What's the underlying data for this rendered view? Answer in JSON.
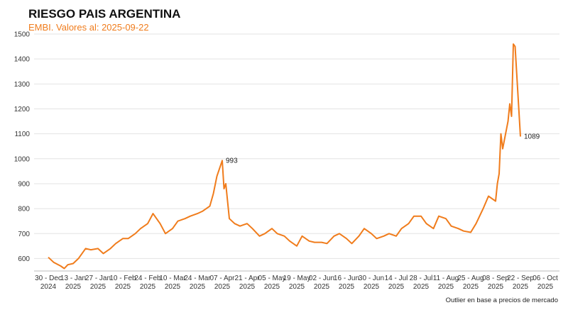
{
  "chart_data": {
    "type": "line",
    "title": "RIESGO PAIS ARGENTINA",
    "subtitle": "EMBI. Valores al: 2025-09-22",
    "footnote": "Outlier en base a precios de mercado",
    "ylim": [
      550,
      1500
    ],
    "yticks": [
      600,
      700,
      800,
      900,
      1000,
      1100,
      1200,
      1300,
      1400,
      1500
    ],
    "grid": true,
    "line_color": "#f07c1c",
    "xticks": [
      {
        "top": "30 - Dec",
        "bottom": "2024"
      },
      {
        "top": "13 - Jan",
        "bottom": "2025"
      },
      {
        "top": "27 - Jan",
        "bottom": "2025"
      },
      {
        "top": "10 - Feb",
        "bottom": "2025"
      },
      {
        "top": "24 - Feb",
        "bottom": "2025"
      },
      {
        "top": "10 - Mar",
        "bottom": "2025"
      },
      {
        "top": "24 - Mar",
        "bottom": "2025"
      },
      {
        "top": "07 - Apr",
        "bottom": "2025"
      },
      {
        "top": "21 - Apr",
        "bottom": "2025"
      },
      {
        "top": "05 - May",
        "bottom": "2025"
      },
      {
        "top": "19 - May",
        "bottom": "2025"
      },
      {
        "top": "02 - Jun",
        "bottom": "2025"
      },
      {
        "top": "16 - Jun",
        "bottom": "2025"
      },
      {
        "top": "30 - Jun",
        "bottom": "2025"
      },
      {
        "top": "14 - Jul",
        "bottom": "2025"
      },
      {
        "top": "28 - Jul",
        "bottom": "2025"
      },
      {
        "top": "11 - Aug",
        "bottom": "2025"
      },
      {
        "top": "25 - Aug",
        "bottom": "2025"
      },
      {
        "top": "08 - Sep",
        "bottom": "2025"
      },
      {
        "top": "22 - Sep",
        "bottom": "2025"
      },
      {
        "top": "06 - Oct",
        "bottom": "2025"
      }
    ],
    "annotations": [
      {
        "label": "993",
        "value": 993,
        "date": "2025-04-07"
      },
      {
        "label": "1089",
        "value": 1089,
        "date": "2025-09-22"
      }
    ],
    "x": [
      "2024-12-30",
      "2025-01-02",
      "2025-01-06",
      "2025-01-08",
      "2025-01-10",
      "2025-01-13",
      "2025-01-16",
      "2025-01-20",
      "2025-01-23",
      "2025-01-27",
      "2025-01-30",
      "2025-02-03",
      "2025-02-06",
      "2025-02-10",
      "2025-02-13",
      "2025-02-17",
      "2025-02-20",
      "2025-02-24",
      "2025-02-27",
      "2025-03-03",
      "2025-03-06",
      "2025-03-10",
      "2025-03-13",
      "2025-03-17",
      "2025-03-20",
      "2025-03-24",
      "2025-03-27",
      "2025-03-31",
      "2025-04-02",
      "2025-04-04",
      "2025-04-07",
      "2025-04-08",
      "2025-04-09",
      "2025-04-11",
      "2025-04-14",
      "2025-04-17",
      "2025-04-21",
      "2025-04-24",
      "2025-04-28",
      "2025-05-01",
      "2025-05-05",
      "2025-05-08",
      "2025-05-12",
      "2025-05-15",
      "2025-05-19",
      "2025-05-22",
      "2025-05-26",
      "2025-05-29",
      "2025-06-02",
      "2025-06-05",
      "2025-06-09",
      "2025-06-12",
      "2025-06-16",
      "2025-06-19",
      "2025-06-23",
      "2025-06-26",
      "2025-06-30",
      "2025-07-03",
      "2025-07-07",
      "2025-07-10",
      "2025-07-14",
      "2025-07-17",
      "2025-07-21",
      "2025-07-24",
      "2025-07-28",
      "2025-07-31",
      "2025-08-04",
      "2025-08-07",
      "2025-08-11",
      "2025-08-14",
      "2025-08-18",
      "2025-08-21",
      "2025-08-25",
      "2025-08-28",
      "2025-09-01",
      "2025-09-04",
      "2025-09-08",
      "2025-09-09",
      "2025-09-10",
      "2025-09-11",
      "2025-09-12",
      "2025-09-15",
      "2025-09-16",
      "2025-09-17",
      "2025-09-18",
      "2025-09-19",
      "2025-09-22"
    ],
    "series": [
      {
        "values": [
          605,
          585,
          570,
          560,
          575,
          580,
          600,
          640,
          635,
          640,
          620,
          640,
          660,
          680,
          680,
          700,
          720,
          740,
          780,
          740,
          700,
          720,
          750,
          760,
          770,
          780,
          790,
          810,
          860,
          930,
          993,
          880,
          900,
          760,
          740,
          730,
          740,
          720,
          690,
          700,
          720,
          700,
          690,
          670,
          650,
          690,
          670,
          665,
          665,
          660,
          690,
          700,
          680,
          660,
          690,
          720,
          700,
          680,
          690,
          700,
          690,
          720,
          740,
          770,
          770,
          740,
          720,
          770,
          760,
          730,
          720,
          710,
          705,
          740,
          800,
          850,
          830,
          900,
          940,
          1100,
          1040,
          1150,
          1220,
          1170,
          1460,
          1450,
          1089
        ]
      }
    ]
  }
}
